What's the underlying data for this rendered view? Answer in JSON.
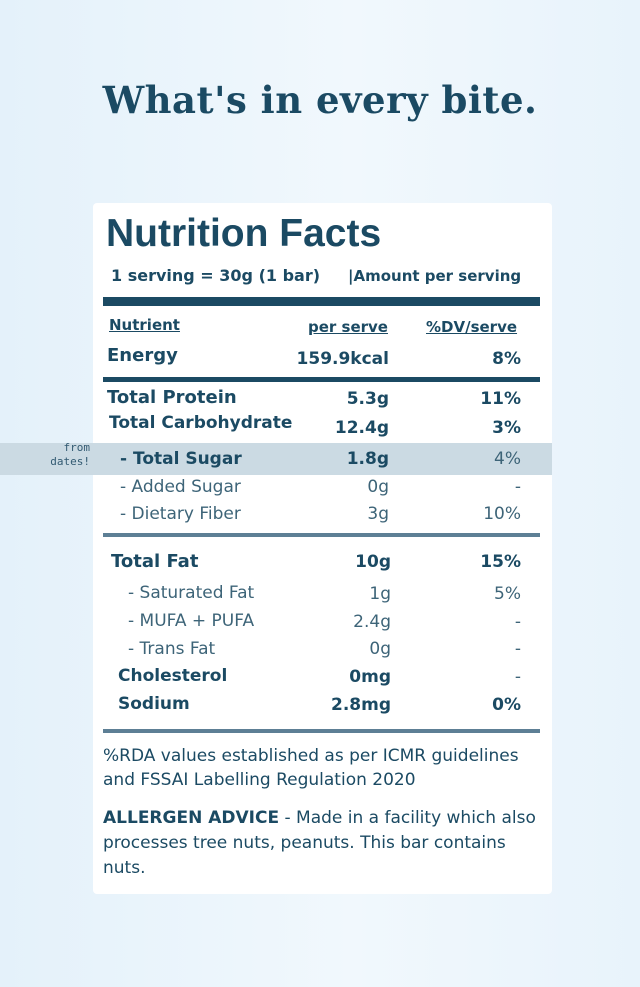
{
  "heading": "What's in every bite.",
  "label": {
    "title": "Nutrition Facts",
    "serving": "1 serving = 30g (1 bar)",
    "amount": "|Amount per serving",
    "columns": {
      "nutrient": "Nutrient",
      "per_serve": "per serve",
      "dv": "%DV/serve"
    },
    "rows": [
      {
        "name": "Energy",
        "value": "159.9kcal",
        "dv": "8%"
      },
      {
        "name": "Total Protein",
        "value": "5.3g",
        "dv": "11%"
      },
      {
        "name": "Total Carbohydrate",
        "value": "12.4g",
        "dv": "3%"
      },
      {
        "name": "- Total Sugar",
        "value": "1.8g",
        "dv": "4%"
      },
      {
        "name": "- Added Sugar",
        "value": "0g",
        "dv": "-"
      },
      {
        "name": "- Dietary Fiber",
        "value": "3g",
        "dv": "10%"
      },
      {
        "name": "Total Fat",
        "value": "10g",
        "dv": "15%"
      },
      {
        "name": "- Saturated Fat",
        "value": "1g",
        "dv": "5%"
      },
      {
        "name": "- MUFA + PUFA",
        "value": "2.4g",
        "dv": "-"
      },
      {
        "name": "- Trans Fat",
        "value": "0g",
        "dv": "-"
      },
      {
        "name": "Cholesterol",
        "value": "0mg",
        "dv": "-"
      },
      {
        "name": "Sodium",
        "value": "2.8mg",
        "dv": "0%"
      }
    ],
    "sugar_note": "from dates!",
    "rda_note": "%RDA values established as per ICMR guidelines and FSSAI Labelling Regulation 2020",
    "allergen_title": "ALLERGEN ADVICE",
    "allergen_text": " - Made in a facility which also processes tree nuts, peanuts. This bar contains nuts."
  },
  "colors": {
    "text": "#1b4a63",
    "highlight_band": "#cbdae3",
    "divider_grey": "#5d7f95"
  }
}
